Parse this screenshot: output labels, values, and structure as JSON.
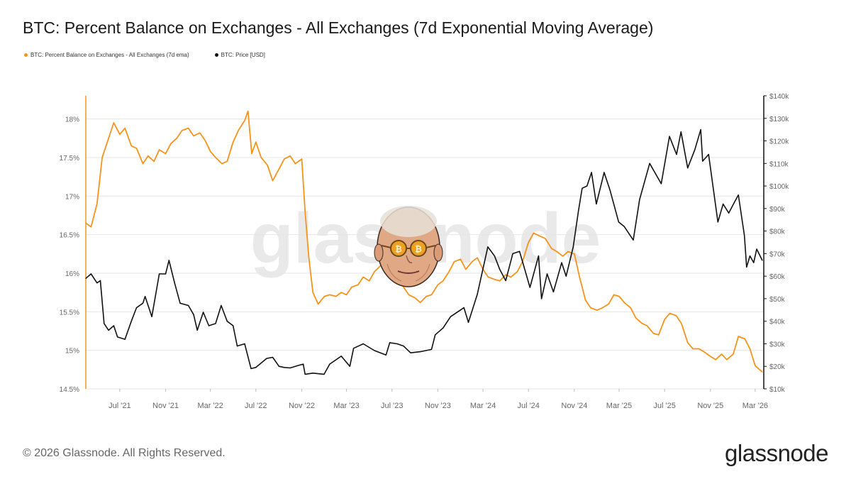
{
  "title": "BTC: Percent Balance on Exchanges - All Exchanges (7d Exponential Moving Average)",
  "legend": [
    {
      "label": "BTC: Percent Balance on Exchanges - All Exchanges (7d ema)",
      "color": "#f7931a"
    },
    {
      "label": "BTC: Price [USD]",
      "color": "#111111"
    }
  ],
  "watermark": "glassnode",
  "footer": {
    "copyright": "© 2026 Glassnode. All Rights Reserved.",
    "brand": "glassnode"
  },
  "colors": {
    "balance": "#f7931a",
    "price": "#111111",
    "grid": "#e6e6e6",
    "axis_text": "#666666"
  },
  "icons": [
    "charlie-munger-face-icon"
  ],
  "chart_data": {
    "type": "line",
    "x_ticks": [
      "Jul '21",
      "Nov '21",
      "Mar '22",
      "Jul '22",
      "Nov '22",
      "Mar '23",
      "Jul '23",
      "Nov '23",
      "Mar '24",
      "Jul '24",
      "Nov '24",
      "Mar '25",
      "Jul '25",
      "Nov '25",
      "Mar '26"
    ],
    "x_tick_dates": [
      "2021-07-01",
      "2021-11-01",
      "2022-03-01",
      "2022-07-01",
      "2022-11-01",
      "2023-03-01",
      "2023-07-01",
      "2023-11-01",
      "2024-03-01",
      "2024-07-01",
      "2024-11-01",
      "2025-03-01",
      "2025-07-01",
      "2025-11-01",
      "2026-03-01"
    ],
    "x_range": [
      "2021-04-01",
      "2026-03-24"
    ],
    "y_left": {
      "label": "",
      "ticks": [
        "14.5%",
        "15%",
        "15.5%",
        "16%",
        "16.5%",
        "17%",
        "17.5%",
        "18%"
      ],
      "range": [
        14.5,
        18.3
      ]
    },
    "y_right": {
      "label": "",
      "ticks": [
        "$10k",
        "$20k",
        "$30k",
        "$40k",
        "$50k",
        "$60k",
        "$70k",
        "$80k",
        "$90k",
        "$100k",
        "$110k",
        "$120k",
        "$130k",
        "$140k"
      ],
      "range": [
        10000,
        140000
      ]
    },
    "grid": "horizontal",
    "series": [
      {
        "name": "BTC: Percent Balance on Exchanges - All Exchanges (7d ema)",
        "axis": "left",
        "color": "#f7931a",
        "points": [
          [
            "2021-04-01",
            16.65
          ],
          [
            "2021-04-15",
            16.6
          ],
          [
            "2021-05-01",
            16.9
          ],
          [
            "2021-05-15",
            17.5
          ],
          [
            "2021-06-01",
            17.75
          ],
          [
            "2021-06-15",
            17.95
          ],
          [
            "2021-07-01",
            17.8
          ],
          [
            "2021-07-15",
            17.88
          ],
          [
            "2021-08-01",
            17.65
          ],
          [
            "2021-08-15",
            17.62
          ],
          [
            "2021-09-01",
            17.42
          ],
          [
            "2021-09-15",
            17.52
          ],
          [
            "2021-10-01",
            17.45
          ],
          [
            "2021-10-15",
            17.6
          ],
          [
            "2021-11-01",
            17.55
          ],
          [
            "2021-11-15",
            17.68
          ],
          [
            "2021-12-01",
            17.75
          ],
          [
            "2021-12-15",
            17.85
          ],
          [
            "2022-01-01",
            17.88
          ],
          [
            "2022-01-15",
            17.78
          ],
          [
            "2022-02-01",
            17.82
          ],
          [
            "2022-02-15",
            17.72
          ],
          [
            "2022-03-01",
            17.58
          ],
          [
            "2022-03-15",
            17.5
          ],
          [
            "2022-04-01",
            17.42
          ],
          [
            "2022-04-15",
            17.45
          ],
          [
            "2022-05-01",
            17.7
          ],
          [
            "2022-05-15",
            17.85
          ],
          [
            "2022-06-01",
            17.98
          ],
          [
            "2022-06-10",
            18.1
          ],
          [
            "2022-06-20",
            17.55
          ],
          [
            "2022-07-01",
            17.7
          ],
          [
            "2022-07-15",
            17.5
          ],
          [
            "2022-08-01",
            17.4
          ],
          [
            "2022-08-15",
            17.2
          ],
          [
            "2022-09-01",
            17.35
          ],
          [
            "2022-09-15",
            17.48
          ],
          [
            "2022-10-01",
            17.52
          ],
          [
            "2022-10-15",
            17.42
          ],
          [
            "2022-11-01",
            17.48
          ],
          [
            "2022-11-10",
            16.8
          ],
          [
            "2022-11-20",
            16.2
          ],
          [
            "2022-12-01",
            15.75
          ],
          [
            "2022-12-15",
            15.6
          ],
          [
            "2023-01-01",
            15.7
          ],
          [
            "2023-01-15",
            15.72
          ],
          [
            "2023-02-01",
            15.7
          ],
          [
            "2023-02-15",
            15.75
          ],
          [
            "2023-03-01",
            15.72
          ],
          [
            "2023-03-15",
            15.82
          ],
          [
            "2023-04-01",
            15.85
          ],
          [
            "2023-04-15",
            15.95
          ],
          [
            "2023-05-01",
            15.9
          ],
          [
            "2023-05-15",
            16.02
          ],
          [
            "2023-06-01",
            16.1
          ],
          [
            "2023-06-15",
            16.2
          ],
          [
            "2023-07-01",
            16.15
          ],
          [
            "2023-07-15",
            16.05
          ],
          [
            "2023-08-01",
            15.82
          ],
          [
            "2023-08-15",
            15.72
          ],
          [
            "2023-09-01",
            15.68
          ],
          [
            "2023-09-15",
            15.62
          ],
          [
            "2023-10-01",
            15.7
          ],
          [
            "2023-10-15",
            15.72
          ],
          [
            "2023-11-01",
            15.85
          ],
          [
            "2023-11-15",
            15.9
          ],
          [
            "2023-12-01",
            16.02
          ],
          [
            "2023-12-15",
            16.15
          ],
          [
            "2024-01-01",
            16.18
          ],
          [
            "2024-01-15",
            16.05
          ],
          [
            "2024-02-01",
            16.15
          ],
          [
            "2024-02-15",
            16.2
          ],
          [
            "2024-03-01",
            16.05
          ],
          [
            "2024-03-15",
            15.95
          ],
          [
            "2024-04-01",
            15.92
          ],
          [
            "2024-04-15",
            15.9
          ],
          [
            "2024-05-01",
            15.98
          ],
          [
            "2024-05-15",
            15.95
          ],
          [
            "2024-06-01",
            16.02
          ],
          [
            "2024-06-15",
            16.15
          ],
          [
            "2024-07-01",
            16.4
          ],
          [
            "2024-07-15",
            16.52
          ],
          [
            "2024-08-01",
            16.48
          ],
          [
            "2024-08-15",
            16.45
          ],
          [
            "2024-09-01",
            16.32
          ],
          [
            "2024-09-15",
            16.28
          ],
          [
            "2024-10-01",
            16.22
          ],
          [
            "2024-10-15",
            16.28
          ],
          [
            "2024-11-01",
            16.25
          ],
          [
            "2024-11-15",
            15.95
          ],
          [
            "2024-12-01",
            15.65
          ],
          [
            "2024-12-15",
            15.55
          ],
          [
            "2025-01-01",
            15.52
          ],
          [
            "2025-01-15",
            15.55
          ],
          [
            "2025-02-01",
            15.6
          ],
          [
            "2025-02-15",
            15.72
          ],
          [
            "2025-03-01",
            15.7
          ],
          [
            "2025-03-15",
            15.62
          ],
          [
            "2025-04-01",
            15.55
          ],
          [
            "2025-04-15",
            15.42
          ],
          [
            "2025-05-01",
            15.35
          ],
          [
            "2025-05-15",
            15.32
          ],
          [
            "2025-06-01",
            15.22
          ],
          [
            "2025-06-15",
            15.2
          ],
          [
            "2025-07-01",
            15.4
          ],
          [
            "2025-07-15",
            15.48
          ],
          [
            "2025-08-01",
            15.45
          ],
          [
            "2025-08-15",
            15.35
          ],
          [
            "2025-09-01",
            15.1
          ],
          [
            "2025-09-15",
            15.02
          ],
          [
            "2025-10-01",
            15.02
          ],
          [
            "2025-10-15",
            14.98
          ],
          [
            "2025-11-01",
            14.92
          ],
          [
            "2025-11-15",
            14.88
          ],
          [
            "2025-12-01",
            14.95
          ],
          [
            "2025-12-15",
            14.88
          ],
          [
            "2026-01-01",
            14.95
          ],
          [
            "2026-01-15",
            15.18
          ],
          [
            "2026-02-01",
            15.15
          ],
          [
            "2026-02-15",
            15.02
          ],
          [
            "2026-03-01",
            14.8
          ],
          [
            "2026-03-20",
            14.72
          ]
        ]
      },
      {
        "name": "BTC: Price [USD]",
        "axis": "right",
        "color": "#111111",
        "points": [
          [
            "2021-04-01",
            59000
          ],
          [
            "2021-04-15",
            61000
          ],
          [
            "2021-05-01",
            57000
          ],
          [
            "2021-05-10",
            58000
          ],
          [
            "2021-05-20",
            39000
          ],
          [
            "2021-06-01",
            36000
          ],
          [
            "2021-06-15",
            38000
          ],
          [
            "2021-06-25",
            33000
          ],
          [
            "2021-07-15",
            32000
          ],
          [
            "2021-08-01",
            40000
          ],
          [
            "2021-08-15",
            46000
          ],
          [
            "2021-09-01",
            48000
          ],
          [
            "2021-09-07",
            51000
          ],
          [
            "2021-09-25",
            42000
          ],
          [
            "2021-10-15",
            61000
          ],
          [
            "2021-11-01",
            61000
          ],
          [
            "2021-11-10",
            67000
          ],
          [
            "2021-11-25",
            57000
          ],
          [
            "2021-12-10",
            48000
          ],
          [
            "2022-01-01",
            47000
          ],
          [
            "2022-01-15",
            43000
          ],
          [
            "2022-01-25",
            36000
          ],
          [
            "2022-02-10",
            44000
          ],
          [
            "2022-02-25",
            38000
          ],
          [
            "2022-03-15",
            39000
          ],
          [
            "2022-03-30",
            47000
          ],
          [
            "2022-04-15",
            40000
          ],
          [
            "2022-05-01",
            38000
          ],
          [
            "2022-05-12",
            29000
          ],
          [
            "2022-06-01",
            30000
          ],
          [
            "2022-06-18",
            19000
          ],
          [
            "2022-07-01",
            19500
          ],
          [
            "2022-07-30",
            23500
          ],
          [
            "2022-08-15",
            24000
          ],
          [
            "2022-09-01",
            20000
          ],
          [
            "2022-09-15",
            19500
          ],
          [
            "2022-10-01",
            19300
          ],
          [
            "2022-10-25",
            20500
          ],
          [
            "2022-11-05",
            21000
          ],
          [
            "2022-11-10",
            16500
          ],
          [
            "2022-12-01",
            17000
          ],
          [
            "2022-12-31",
            16500
          ],
          [
            "2023-01-15",
            21000
          ],
          [
            "2023-02-15",
            24500
          ],
          [
            "2023-03-10",
            20000
          ],
          [
            "2023-03-20",
            28000
          ],
          [
            "2023-04-15",
            30000
          ],
          [
            "2023-05-15",
            27000
          ],
          [
            "2023-06-15",
            25000
          ],
          [
            "2023-06-25",
            30500
          ],
          [
            "2023-07-15",
            30000
          ],
          [
            "2023-08-01",
            29000
          ],
          [
            "2023-08-20",
            26000
          ],
          [
            "2023-09-15",
            26500
          ],
          [
            "2023-10-15",
            27500
          ],
          [
            "2023-10-25",
            34000
          ],
          [
            "2023-11-15",
            37000
          ],
          [
            "2023-12-05",
            42000
          ],
          [
            "2024-01-10",
            46000
          ],
          [
            "2024-01-22",
            39500
          ],
          [
            "2024-02-15",
            52000
          ],
          [
            "2024-03-14",
            73000
          ],
          [
            "2024-04-01",
            69000
          ],
          [
            "2024-04-15",
            63000
          ],
          [
            "2024-05-01",
            58000
          ],
          [
            "2024-05-20",
            70000
          ],
          [
            "2024-06-07",
            71000
          ],
          [
            "2024-07-05",
            55000
          ],
          [
            "2024-07-28",
            69000
          ],
          [
            "2024-08-05",
            50000
          ],
          [
            "2024-08-20",
            61000
          ],
          [
            "2024-09-06",
            53000
          ],
          [
            "2024-09-28",
            66000
          ],
          [
            "2024-10-10",
            60000
          ],
          [
            "2024-10-29",
            73000
          ],
          [
            "2024-11-12",
            89000
          ],
          [
            "2024-11-22",
            99000
          ],
          [
            "2024-12-05",
            100000
          ],
          [
            "2024-12-17",
            106000
          ],
          [
            "2024-12-30",
            92000
          ],
          [
            "2025-01-20",
            106000
          ],
          [
            "2025-02-05",
            98000
          ],
          [
            "2025-02-28",
            84000
          ],
          [
            "2025-03-15",
            82000
          ],
          [
            "2025-04-08",
            76000
          ],
          [
            "2025-04-25",
            94000
          ],
          [
            "2025-05-22",
            110000
          ],
          [
            "2025-06-22",
            101000
          ],
          [
            "2025-07-14",
            122000
          ],
          [
            "2025-08-02",
            114000
          ],
          [
            "2025-08-14",
            124000
          ],
          [
            "2025-09-01",
            108000
          ],
          [
            "2025-09-20",
            116000
          ],
          [
            "2025-10-06",
            125000
          ],
          [
            "2025-10-11",
            111000
          ],
          [
            "2025-10-27",
            114000
          ],
          [
            "2025-11-21",
            84000
          ],
          [
            "2025-12-05",
            92000
          ],
          [
            "2025-12-20",
            88000
          ],
          [
            "2026-01-05",
            93000
          ],
          [
            "2026-01-15",
            96000
          ],
          [
            "2026-01-31",
            78000
          ],
          [
            "2026-02-06",
            64000
          ],
          [
            "2026-02-15",
            69000
          ],
          [
            "2026-02-25",
            66000
          ],
          [
            "2026-03-05",
            72000
          ],
          [
            "2026-03-20",
            67000
          ]
        ]
      }
    ]
  }
}
